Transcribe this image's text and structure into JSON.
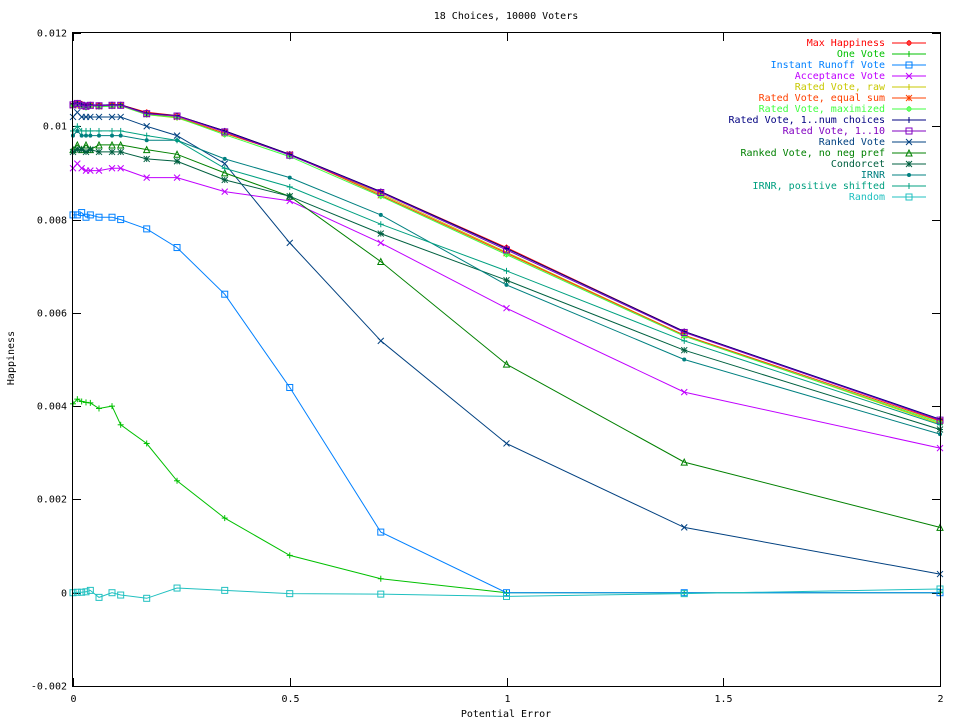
{
  "chart_data": {
    "type": "line",
    "title": "18 Choices, 10000 Voters",
    "xlabel": "Potential Error",
    "ylabel": "Happiness",
    "xlim": [
      0,
      2
    ],
    "ylim": [
      -0.002,
      0.012
    ],
    "xticks": [
      0,
      0.5,
      1,
      1.5,
      2
    ],
    "xtick_labels": [
      "0",
      "0.5",
      "1",
      "1.5",
      "2"
    ],
    "yticks": [
      -0.002,
      0,
      0.002,
      0.004,
      0.006,
      0.008,
      0.01,
      0.012
    ],
    "ytick_labels": [
      "-0.002",
      "0",
      "0.002",
      "0.004",
      "0.006",
      "0.008",
      "0.01",
      "0.012"
    ],
    "grid": false,
    "legend_position": "top-right",
    "x": [
      0,
      0.01,
      0.02,
      0.03,
      0.04,
      0.06,
      0.09,
      0.11,
      0.17,
      0.24,
      0.35,
      0.5,
      0.71,
      1,
      1.41,
      2
    ],
    "series": [
      {
        "name": "Max Happiness",
        "color": "#ff0000",
        "marker": "plus-circle",
        "values": [
          0.01045,
          0.0105,
          0.01048,
          0.01044,
          0.01046,
          0.01045,
          0.01046,
          0.01046,
          0.0103,
          0.01023,
          0.0099,
          0.0094,
          0.0086,
          0.0074,
          0.0056,
          0.0037
        ]
      },
      {
        "name": "One Vote",
        "color": "#00c000",
        "marker": "plus",
        "values": [
          0.00405,
          0.00415,
          0.0041,
          0.00408,
          0.00407,
          0.00395,
          0.004,
          0.0036,
          0.0032,
          0.0024,
          0.0016,
          0.0008,
          0.0003,
          0.0,
          0.0,
          0.0
        ]
      },
      {
        "name": "Instant Runoff Vote",
        "color": "#0080ff",
        "marker": "square",
        "values": [
          0.0081,
          0.0081,
          0.00815,
          0.00805,
          0.0081,
          0.00805,
          0.00805,
          0.008,
          0.0078,
          0.0074,
          0.0064,
          0.0044,
          0.0013,
          0.0,
          0.0,
          0.0
        ]
      },
      {
        "name": "Acceptance Vote",
        "color": "#c000ff",
        "marker": "x",
        "values": [
          0.0091,
          0.0092,
          0.0091,
          0.00905,
          0.00905,
          0.00905,
          0.0091,
          0.0091,
          0.0089,
          0.0089,
          0.0086,
          0.0084,
          0.0075,
          0.0061,
          0.0043,
          0.0031
        ]
      },
      {
        "name": "Rated Vote, raw",
        "color": "#c8c800",
        "marker": "plus",
        "values": [
          0.01045,
          0.01045,
          0.01043,
          0.01042,
          0.01044,
          0.01042,
          0.01044,
          0.01044,
          0.01025,
          0.01018,
          0.00985,
          0.0094,
          0.00855,
          0.0073,
          0.00552,
          0.00362
        ]
      },
      {
        "name": "Rated Vote, equal sum",
        "color": "#ff4000",
        "marker": "star",
        "values": [
          0.01045,
          0.01048,
          0.01045,
          0.01042,
          0.01044,
          0.01043,
          0.01044,
          0.01045,
          0.01026,
          0.0102,
          0.00985,
          0.0094,
          0.00852,
          0.00728,
          0.00552,
          0.00368
        ]
      },
      {
        "name": "Rated Vote, maximized",
        "color": "#40ff40",
        "marker": "plus-circle",
        "values": [
          0.01045,
          0.01048,
          0.01044,
          0.0104,
          0.01044,
          0.01042,
          0.01043,
          0.01044,
          0.01025,
          0.01019,
          0.00982,
          0.00935,
          0.0085,
          0.00725,
          0.0055,
          0.00365
        ]
      },
      {
        "name": "Rated Vote, 1..num choices",
        "color": "#000080",
        "marker": "plus",
        "values": [
          0.01048,
          0.0105,
          0.01047,
          0.01045,
          0.01046,
          0.01045,
          0.01046,
          0.01046,
          0.01028,
          0.01023,
          0.0099,
          0.0094,
          0.0086,
          0.00738,
          0.0056,
          0.00372
        ]
      },
      {
        "name": "Rated Vote, 1..10",
        "color": "#8000c0",
        "marker": "square",
        "values": [
          0.01046,
          0.01049,
          0.01045,
          0.01043,
          0.01045,
          0.01044,
          0.01045,
          0.01045,
          0.01027,
          0.01022,
          0.00988,
          0.00938,
          0.00858,
          0.00735,
          0.00558,
          0.0037
        ]
      },
      {
        "name": "Ranked Vote",
        "color": "#004080",
        "marker": "x",
        "values": [
          0.0102,
          0.0103,
          0.0102,
          0.0102,
          0.0102,
          0.0102,
          0.0102,
          0.0102,
          0.01,
          0.0098,
          0.0092,
          0.0075,
          0.0054,
          0.0032,
          0.0014,
          0.0004
        ]
      },
      {
        "name": "Ranked Vote, no neg pref",
        "color": "#008000",
        "marker": "triangle",
        "values": [
          0.0095,
          0.0096,
          0.0095,
          0.0096,
          0.0095,
          0.0096,
          0.0096,
          0.0096,
          0.0095,
          0.0094,
          0.009,
          0.0085,
          0.0071,
          0.0049,
          0.0028,
          0.0014
        ]
      },
      {
        "name": "Condorcet",
        "color": "#006040",
        "marker": "star",
        "values": [
          0.00945,
          0.0095,
          0.0095,
          0.00945,
          0.0095,
          0.00945,
          0.00945,
          0.00945,
          0.0093,
          0.00925,
          0.00885,
          0.0085,
          0.0077,
          0.0067,
          0.0052,
          0.0035
        ]
      },
      {
        "name": "IRNR",
        "color": "#008080",
        "marker": "dot",
        "values": [
          0.0098,
          0.0099,
          0.0098,
          0.0098,
          0.0098,
          0.0098,
          0.0098,
          0.0098,
          0.0097,
          0.0097,
          0.0093,
          0.0089,
          0.0081,
          0.0066,
          0.005,
          0.0034
        ]
      },
      {
        "name": "IRNR, positive shifted",
        "color": "#00a080",
        "marker": "plus",
        "values": [
          0.0099,
          0.01,
          0.0099,
          0.0099,
          0.0099,
          0.0099,
          0.0099,
          0.0099,
          0.0098,
          0.0097,
          0.0091,
          0.0087,
          0.0079,
          0.0069,
          0.0054,
          0.0036
        ]
      },
      {
        "name": "Random",
        "color": "#20c0c0",
        "marker": "square",
        "values": [
          0.0,
          1e-05,
          1e-05,
          2e-05,
          5e-05,
          -0.0001,
          0.0,
          -5e-05,
          -0.00012,
          0.0001,
          5e-05,
          -2e-05,
          -3e-05,
          -8e-05,
          -2e-05,
          8e-05
        ]
      }
    ]
  }
}
